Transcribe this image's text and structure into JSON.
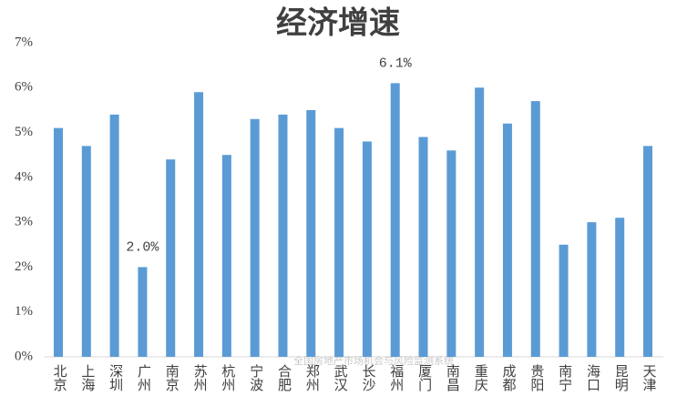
{
  "chart_data": {
    "type": "bar",
    "title": "经济增速",
    "categories": [
      "北京",
      "上海",
      "深圳",
      "广州",
      "南京",
      "苏州",
      "杭州",
      "宁波",
      "合肥",
      "郑州",
      "武汉",
      "长沙",
      "福州",
      "厦门",
      "南昌",
      "重庆",
      "成都",
      "贵阳",
      "南宁",
      "海口",
      "昆明",
      "天津"
    ],
    "values": [
      5.1,
      4.7,
      5.4,
      2.0,
      4.4,
      5.9,
      4.5,
      5.3,
      5.4,
      5.5,
      5.1,
      4.8,
      6.1,
      4.9,
      4.6,
      6.0,
      5.2,
      5.7,
      2.5,
      3.0,
      3.1,
      4.7
    ],
    "value_labels": [
      null,
      null,
      null,
      "2.0%",
      null,
      null,
      null,
      null,
      null,
      null,
      null,
      null,
      "6.1%",
      null,
      null,
      null,
      null,
      null,
      null,
      null,
      null,
      null
    ],
    "color": "#5b9bd5",
    "ylim": [
      0,
      7
    ],
    "yticks": [
      {
        "value": 0,
        "label": "0%"
      },
      {
        "value": 1,
        "label": "1%"
      },
      {
        "value": 2,
        "label": "2%"
      },
      {
        "value": 3,
        "label": "3%"
      },
      {
        "value": 4,
        "label": "4%"
      },
      {
        "value": 5,
        "label": "5%"
      },
      {
        "value": 6,
        "label": "6%"
      },
      {
        "value": 7,
        "label": "7%"
      }
    ],
    "grid": false,
    "watermark": "全国房地产市场机会与风险监测系统"
  }
}
